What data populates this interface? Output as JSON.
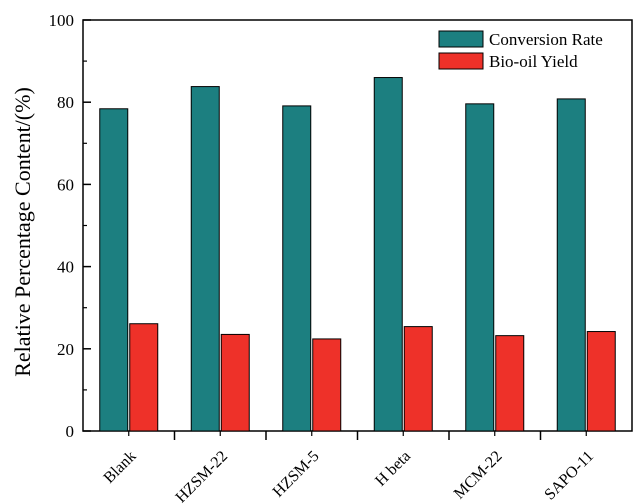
{
  "chart_data": {
    "type": "bar",
    "categories": [
      "Blank",
      "HZSM-22",
      "HZSM-5",
      "H beta",
      "MCM-22",
      "SAPO-11"
    ],
    "series": [
      {
        "name": "Conversion Rate",
        "values": [
          78.4,
          83.8,
          79.1,
          86.0,
          79.6,
          80.8
        ],
        "color": "#1c7f80"
      },
      {
        "name": "Bio-oil Yield",
        "values": [
          26.1,
          23.5,
          22.4,
          25.4,
          23.2,
          24.2
        ],
        "color": "#ee3129"
      }
    ],
    "xlabel": "",
    "ylabel": "Relative Percentage Content/(%)",
    "ylim": [
      0,
      100
    ],
    "yticks": [
      0,
      20,
      40,
      60,
      80,
      100
    ],
    "grid": false,
    "legend_position": "top-right"
  }
}
